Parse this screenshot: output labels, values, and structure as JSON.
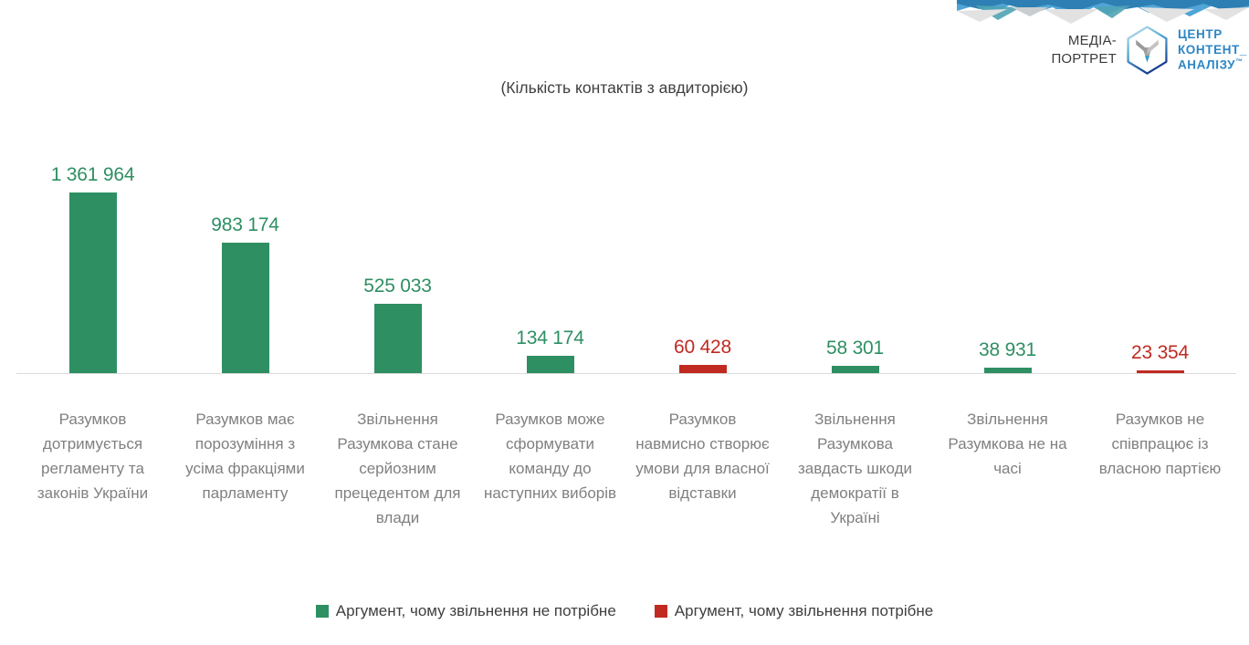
{
  "brand": {
    "media_portret_line1": "МЕДІА-",
    "media_portret_line2": "ПОРТРЕТ",
    "center_name_line1": "ЦЕНТР",
    "center_name_line2": "КОНТЕНТ_",
    "center_name_line3": "АНАЛІЗУ",
    "center_name_tm": "™"
  },
  "title": "(Кількість контактів з авдиторією)",
  "colors": {
    "positive_green": "#2e8f63",
    "negative_red": "#c02a21",
    "category_label_gray": "#808080",
    "title_gray": "#3f3f3f",
    "axis_line": "#dbdbdb",
    "brand_blue": "#2e86c4"
  },
  "chart_data": {
    "type": "bar",
    "title": "(Кількість контактів з авдиторією)",
    "categories": [
      "Разумков дотримується регламенту та законів України",
      "Разумков має порозуміння з усіма фракціями парламенту",
      "Звільнення Разумкова стане серйозним прецедентом для влади",
      "Разумков може сформувати команду до наступних виборів",
      "Разумков навмисно створює умови для власної відставки",
      "Звільнення Разумкова завдасть шкоди демократії в Україні",
      "Звільнення Разумкова не на часі",
      "Разумков не співпрацює із власною партією"
    ],
    "values": [
      1361964,
      983174,
      525033,
      134174,
      60428,
      58301,
      38931,
      23354
    ],
    "value_labels": [
      "1 361 964",
      "983 174",
      "525 033",
      "134 174",
      "60 428",
      "58 301",
      "38 931",
      "23 354"
    ],
    "bar_series": [
      "not_needed",
      "not_needed",
      "not_needed",
      "not_needed",
      "needed",
      "not_needed",
      "not_needed",
      "needed"
    ],
    "series_colors": {
      "not_needed": "#2e8f63",
      "needed": "#c02a21"
    },
    "legend": [
      {
        "label": "Аргумент, чому звільнення не потрібне",
        "series": "not_needed",
        "color": "#2e8f63"
      },
      {
        "label": "Аргумент, чому звільнення потрібне",
        "series": "needed",
        "color": "#c02a21"
      }
    ],
    "ylim": [
      0,
      1400000
    ],
    "grid": false,
    "legend_position": "bottom"
  }
}
